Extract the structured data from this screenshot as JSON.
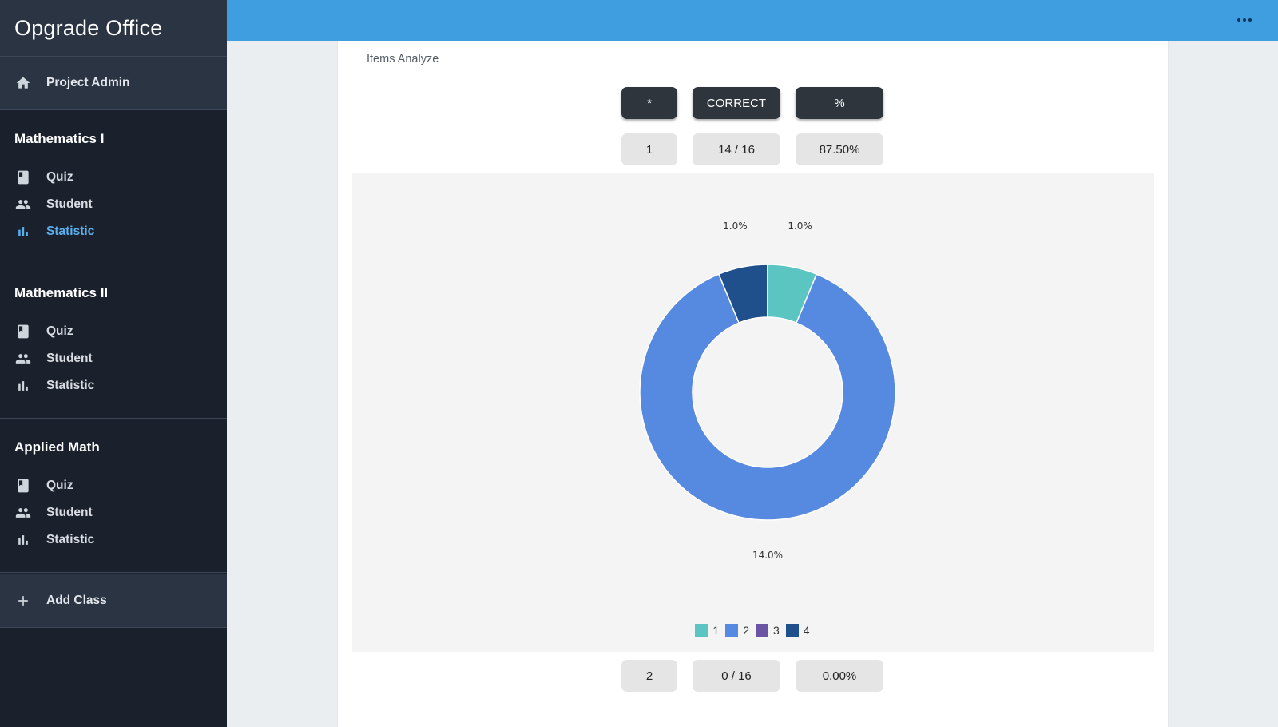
{
  "app": {
    "title": "Opgrade Office"
  },
  "sidebar": {
    "admin": {
      "label": "Project Admin",
      "icon": "home-icon"
    },
    "groups": [
      {
        "title": "Mathematics I",
        "items": [
          {
            "label": "Quiz",
            "icon": "book-icon"
          },
          {
            "label": "Student",
            "icon": "people-icon"
          },
          {
            "label": "Statistic",
            "icon": "bar-chart-icon",
            "active": true
          }
        ]
      },
      {
        "title": "Mathematics II",
        "items": [
          {
            "label": "Quiz",
            "icon": "book-icon"
          },
          {
            "label": "Student",
            "icon": "people-icon"
          },
          {
            "label": "Statistic",
            "icon": "bar-chart-icon"
          }
        ]
      },
      {
        "title": "Applied Math",
        "items": [
          {
            "label": "Quiz",
            "icon": "book-icon"
          },
          {
            "label": "Student",
            "icon": "people-icon"
          },
          {
            "label": "Statistic",
            "icon": "bar-chart-icon"
          }
        ]
      }
    ],
    "add_class": {
      "label": "Add Class",
      "icon": "plus-icon"
    }
  },
  "topbar": {
    "more_icon": "more-horizontal-icon"
  },
  "main": {
    "title": "Items Analyze",
    "headers": [
      "*",
      "CORRECT",
      "%"
    ],
    "rows": [
      {
        "item": "1",
        "correct": "14 / 16",
        "percent": "87.50%"
      },
      {
        "item": "2",
        "correct": "0 / 16",
        "percent": "0.00%"
      }
    ]
  },
  "colors": {
    "sidebar_bg": "#1a202c",
    "topbar": "#3f9ee0",
    "active_link": "#5ab0ee"
  },
  "chart_data": {
    "type": "pie",
    "subtype": "donut",
    "categories": [
      "1",
      "2",
      "3",
      "4"
    ],
    "values": [
      1,
      14,
      0,
      1
    ],
    "slice_labels": [
      "1.0%",
      "14.0%",
      "",
      "1.0%"
    ],
    "colors": [
      "#5bc5c2",
      "#5689e0",
      "#6a55a5",
      "#20508c"
    ],
    "legend": [
      "1",
      "2",
      "3",
      "4"
    ],
    "legend_position": "bottom"
  }
}
